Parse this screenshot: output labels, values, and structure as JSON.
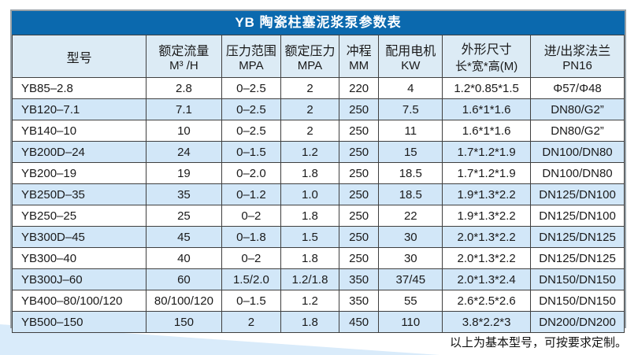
{
  "page": {
    "footer_note": "以上为基本型号，可按要求定制。"
  },
  "colors": {
    "title_bar_bg": "#0b69ae",
    "title_text": "#ffffff",
    "header_bg": "#dcebf5",
    "stripe_row_bg": "#d2e7f8",
    "white_row_bg": "#ffffff",
    "outer_border": "#98a1a7",
    "inner_border": "#3f3f3f",
    "wedge": "#d9ebfa",
    "body_text": "#1a1a1a"
  },
  "table": {
    "title": "YB 陶瓷柱塞泥浆泵参数表",
    "columns": [
      {
        "line1": "型号",
        "line2": ""
      },
      {
        "line1": "额定流量",
        "line2": "M³ /H"
      },
      {
        "line1": "压力范围",
        "line2": "MPA"
      },
      {
        "line1": "额定压力",
        "line2": "MPA"
      },
      {
        "line1": "冲程",
        "line2": "MM"
      },
      {
        "line1": "配用电机",
        "line2": "KW"
      },
      {
        "line1": "外形尺寸",
        "line2": "长*宽*高(M)"
      },
      {
        "line1": "进/出浆法兰",
        "line2": "PN16"
      }
    ],
    "rows": [
      [
        "YB85–2.8",
        "2.8",
        "0–2.5",
        "2",
        "220",
        "4",
        "1.2*0.85*1.5",
        "Φ57/Φ48"
      ],
      [
        "YB120–7.1",
        "7.1",
        "0–2.5",
        "2",
        "250",
        "7.5",
        "1.6*1*1.6",
        "DN80/G2”"
      ],
      [
        "YB140–10",
        "10",
        "0–2.5",
        "2",
        "250",
        "11",
        "1.6*1*1.6",
        "DN80/G2”"
      ],
      [
        "YB200D–24",
        "24",
        "0–1.5",
        "1.2",
        "250",
        "15",
        "1.7*1.2*1.9",
        "DN100/DN80"
      ],
      [
        "YB200–19",
        "19",
        "0–2.0",
        "1.8",
        "250",
        "18.5",
        "1.7*1.2*1.9",
        "DN100/DN80"
      ],
      [
        "YB250D–35",
        "35",
        "0–1.2",
        "1.0",
        "250",
        "18.5",
        "1.9*1.3*2.2",
        "DN125/DN100"
      ],
      [
        "YB250–25",
        "25",
        "0–2",
        "1.8",
        "250",
        "22",
        "1.9*1.3*2.2",
        "DN125/DN100"
      ],
      [
        "YB300D–45",
        "45",
        "0–1.8",
        "1.5",
        "250",
        "30",
        "2.0*1.3*2.2",
        "DN125/DN125"
      ],
      [
        "YB300–40",
        "40",
        "0–2",
        "1.8",
        "250",
        "30",
        "2.0*1.3*2.2",
        "DN125/DN125"
      ],
      [
        "YB300J–60",
        "60",
        "1.5/2.0",
        "1.2/1.8",
        "350",
        "37/45",
        "2.0*1.3*2.4",
        "DN150/DN150"
      ],
      [
        "YB400–80/100/120",
        "80/100/120",
        "0–1.5",
        "1.2",
        "350",
        "55",
        "2.6*2.5*2.6",
        "DN150/DN150"
      ],
      [
        "YB500–150",
        "150",
        "2",
        "1.8",
        "450",
        "110",
        "3.8*2.2*3",
        "DN200/DN200"
      ]
    ]
  }
}
